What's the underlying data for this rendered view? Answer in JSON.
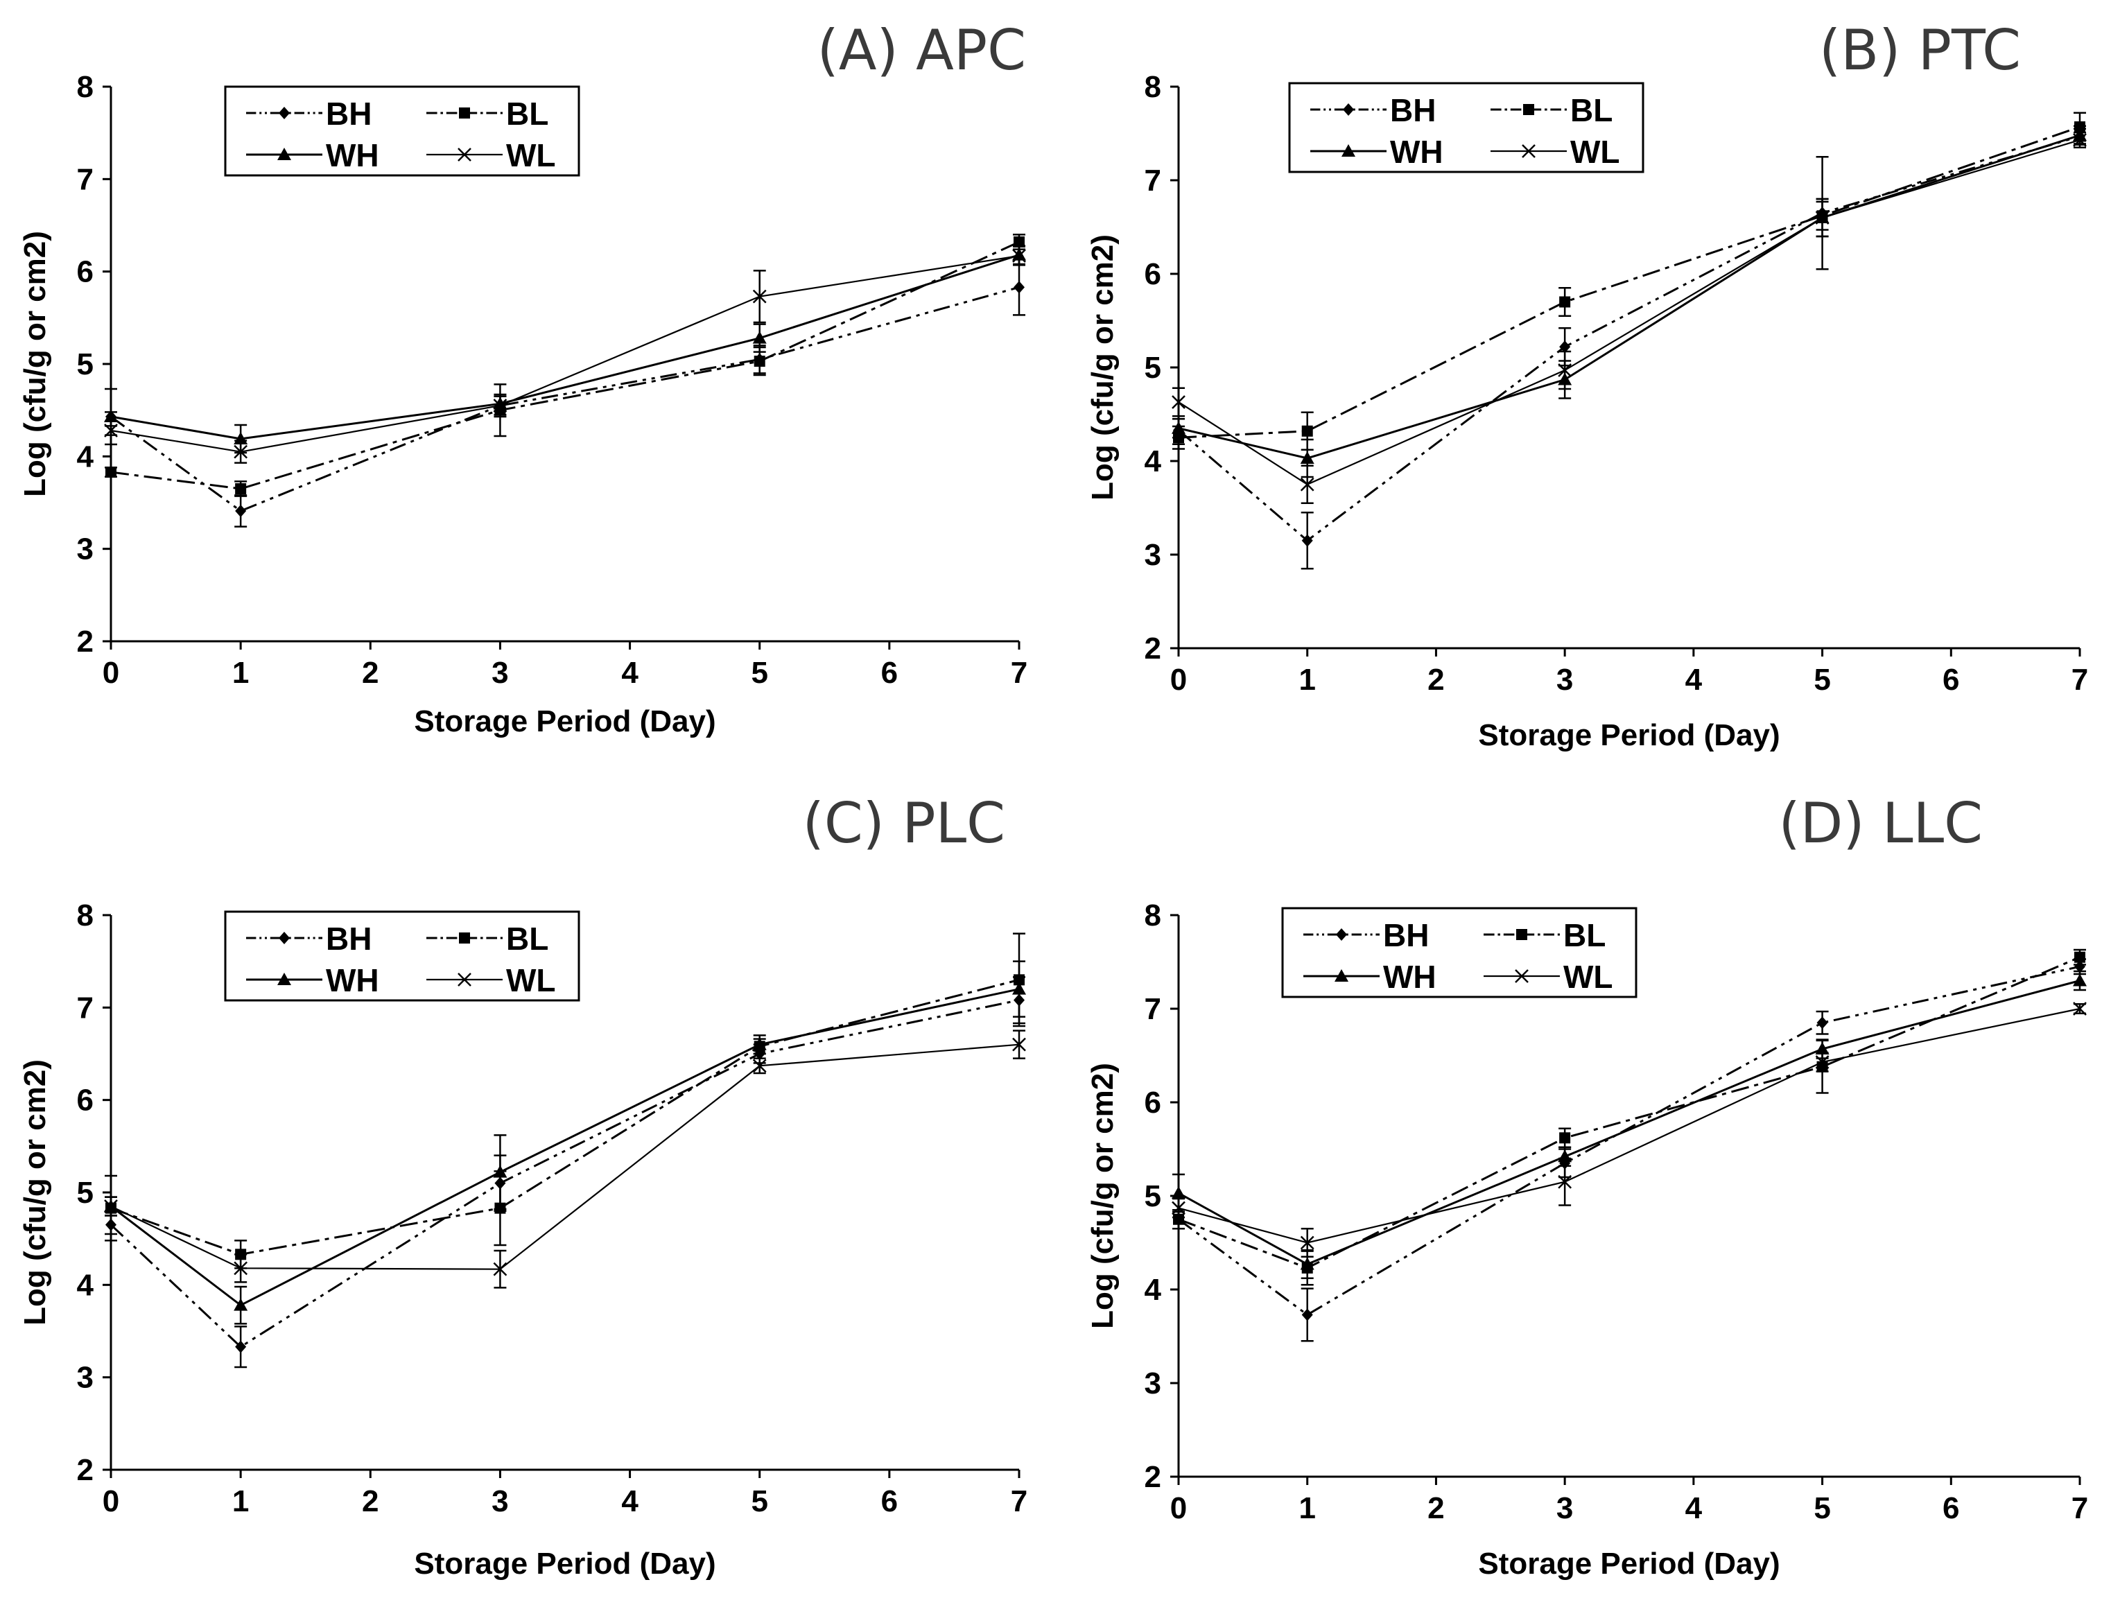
{
  "chart_data": [
    {
      "type": "line",
      "title": "(A) APC",
      "xlabel": "Storage Period (Day)",
      "ylabel": "Log (cfu/g or cm2)",
      "xlim": [
        0,
        7
      ],
      "ylim": [
        2,
        8
      ],
      "xticks": [
        "0",
        "1",
        "2",
        "3",
        "4",
        "5",
        "6",
        "7"
      ],
      "yticks": [
        "2",
        "3",
        "4",
        "5",
        "6",
        "7",
        "8"
      ],
      "x": [
        0,
        1,
        3,
        5,
        7
      ],
      "legend_position": "top-left",
      "series": [
        {
          "name": "BH",
          "values": [
            4.43,
            3.41,
            4.55,
            5.05,
            5.83
          ],
          "errors": [
            0.3,
            0.17,
            0.12,
            0.15,
            0.3
          ]
        },
        {
          "name": "BL",
          "values": [
            3.83,
            3.65,
            4.5,
            5.03,
            6.32
          ],
          "errors": [
            0.05,
            0.08,
            0.28,
            0.15,
            0.08
          ]
        },
        {
          "name": "WH",
          "values": [
            4.43,
            4.19,
            4.57,
            5.28,
            6.18
          ],
          "errors": [
            0.05,
            0.15,
            0.08,
            0.15,
            0.1
          ]
        },
        {
          "name": "WL",
          "values": [
            4.28,
            4.05,
            4.55,
            5.73,
            6.17
          ],
          "errors": [
            0.05,
            0.12,
            0.1,
            0.28,
            0.1
          ]
        }
      ]
    },
    {
      "type": "line",
      "title": "(B) PTC",
      "xlabel": "Storage Period (Day)",
      "ylabel": "Log (cfu/g or cm2)",
      "xlim": [
        0,
        7
      ],
      "ylim": [
        2,
        8
      ],
      "xticks": [
        "0",
        "1",
        "2",
        "3",
        "4",
        "5",
        "6",
        "7"
      ],
      "yticks": [
        "2",
        "3",
        "4",
        "5",
        "6",
        "7",
        "8"
      ],
      "x": [
        0,
        1,
        3,
        5,
        7
      ],
      "legend_position": "top-left",
      "series": [
        {
          "name": "BH",
          "values": [
            4.33,
            3.15,
            5.22,
            6.65,
            7.47
          ],
          "errors": [
            0.15,
            0.3,
            0.2,
            0.6,
            0.08
          ]
        },
        {
          "name": "BL",
          "values": [
            4.25,
            4.32,
            5.7,
            6.62,
            7.57
          ],
          "errors": [
            0.12,
            0.2,
            0.15,
            0.15,
            0.15
          ]
        },
        {
          "name": "WH",
          "values": [
            4.35,
            4.03,
            4.87,
            6.6,
            7.48
          ],
          "errors": [
            0.1,
            0.2,
            0.2,
            0.2,
            0.1
          ]
        },
        {
          "name": "WL",
          "values": [
            4.63,
            3.75,
            4.97,
            6.6,
            7.43
          ],
          "errors": [
            0.15,
            0.2,
            0.2,
            0.2,
            0.08
          ]
        }
      ]
    },
    {
      "type": "line",
      "title": "(C) PLC",
      "xlabel": "Storage Period (Day)",
      "ylabel": "Log (cfu/g or cm2)",
      "xlim": [
        0,
        7
      ],
      "ylim": [
        2,
        8
      ],
      "xticks": [
        "0",
        "1",
        "2",
        "3",
        "4",
        "5",
        "6",
        "7"
      ],
      "yticks": [
        "2",
        "3",
        "4",
        "5",
        "6",
        "7",
        "8"
      ],
      "x": [
        0,
        1,
        3,
        5,
        7
      ],
      "legend_position": "top-left",
      "series": [
        {
          "name": "BH",
          "values": [
            4.65,
            3.33,
            5.1,
            6.5,
            7.08
          ],
          "errors": [
            0.1,
            0.22,
            0.3,
            0.1,
            0.25
          ]
        },
        {
          "name": "BL",
          "values": [
            4.83,
            4.33,
            4.83,
            6.58,
            7.3
          ],
          "errors": [
            0.35,
            0.15,
            0.4,
            0.08,
            0.5
          ]
        },
        {
          "name": "WH",
          "values": [
            4.85,
            3.78,
            5.22,
            6.6,
            7.2
          ],
          "errors": [
            0.1,
            0.2,
            0.4,
            0.1,
            0.3
          ]
        },
        {
          "name": "WL",
          "values": [
            4.85,
            4.18,
            4.17,
            6.37,
            6.6
          ],
          "errors": [
            0.1,
            0.15,
            0.2,
            0.08,
            0.15
          ]
        }
      ]
    },
    {
      "type": "line",
      "title": "(D) LLC",
      "xlabel": "Storage Period (Day)",
      "ylabel": "Log (cfu/g or cm2)",
      "xlim": [
        0,
        7
      ],
      "ylim": [
        2,
        8
      ],
      "xticks": [
        "0",
        "1",
        "2",
        "3",
        "4",
        "5",
        "6",
        "7"
      ],
      "yticks": [
        "2",
        "3",
        "4",
        "5",
        "6",
        "7",
        "8"
      ],
      "x": [
        0,
        1,
        3,
        5,
        7
      ],
      "legend_position": "top-left",
      "series": [
        {
          "name": "BH",
          "values": [
            4.75,
            3.73,
            5.35,
            6.85,
            7.45
          ],
          "errors": [
            0.1,
            0.28,
            0.15,
            0.12,
            0.08
          ]
        },
        {
          "name": "BL",
          "values": [
            4.75,
            4.23,
            5.62,
            6.38,
            7.55
          ],
          "errors": [
            0.1,
            0.18,
            0.1,
            0.28,
            0.08
          ]
        },
        {
          "name": "WH",
          "values": [
            5.03,
            4.27,
            5.42,
            6.57,
            7.3
          ],
          "errors": [
            0.2,
            0.15,
            0.1,
            0.1,
            0.1
          ]
        },
        {
          "name": "WL",
          "values": [
            4.87,
            4.5,
            5.15,
            6.43,
            7.0
          ],
          "errors": [
            0.1,
            0.15,
            0.25,
            0.1,
            0.05
          ]
        }
      ]
    }
  ]
}
